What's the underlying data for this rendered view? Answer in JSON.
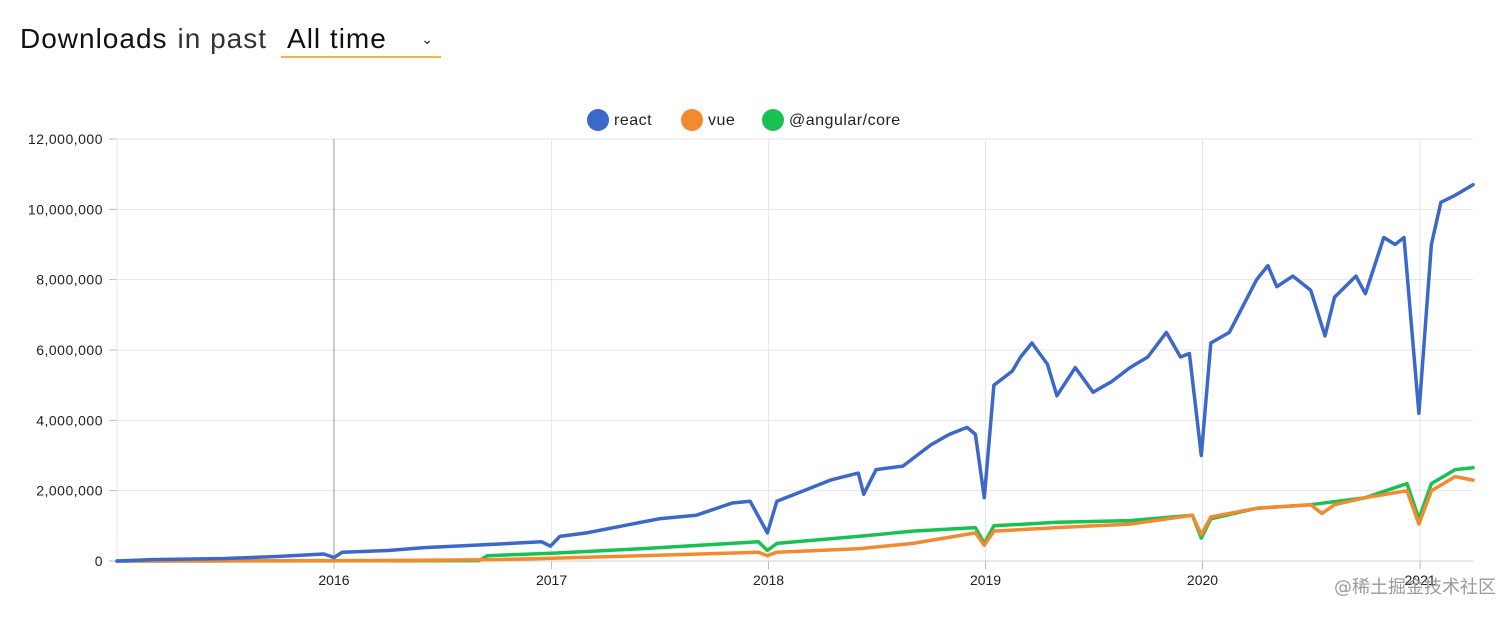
{
  "header": {
    "title": "Downloads",
    "subtitle": "in past",
    "range_selector": {
      "selected": "All time"
    }
  },
  "watermark": "@稀土掘金技术社区",
  "colors": {
    "react": "#3b68c9",
    "vue": "#f28a30",
    "angular": "#19c153",
    "grid": "#e6e6e6",
    "axis": "#999999"
  },
  "chart_data": {
    "type": "line",
    "title": "",
    "xlabel": "",
    "ylabel": "",
    "ylim": [
      0,
      12000000
    ],
    "xlim": [
      "2015-01-01",
      "2021-03-31"
    ],
    "grid": true,
    "legend": "top-center",
    "y_ticks": [
      "0",
      "2,000,000",
      "4,000,000",
      "6,000,000",
      "8,000,000",
      "10,000,000",
      "12,000,000"
    ],
    "x_ticks": [
      "2016",
      "2017",
      "2018",
      "2019",
      "2020",
      "2021"
    ],
    "series": [
      {
        "name": "react",
        "points": [
          [
            "2015-01-01",
            0
          ],
          [
            "2015-03-01",
            40000
          ],
          [
            "2015-07-01",
            70000
          ],
          [
            "2015-10-01",
            130000
          ],
          [
            "2015-12-15",
            200000
          ],
          [
            "2016-01-01",
            100000
          ],
          [
            "2016-01-15",
            250000
          ],
          [
            "2016-04-01",
            300000
          ],
          [
            "2016-06-01",
            380000
          ],
          [
            "2016-08-01",
            430000
          ],
          [
            "2016-10-01",
            480000
          ],
          [
            "2016-12-15",
            550000
          ],
          [
            "2016-12-30",
            420000
          ],
          [
            "2017-01-15",
            700000
          ],
          [
            "2017-03-01",
            800000
          ],
          [
            "2017-05-01",
            1000000
          ],
          [
            "2017-07-01",
            1200000
          ],
          [
            "2017-09-01",
            1300000
          ],
          [
            "2017-11-01",
            1650000
          ],
          [
            "2017-12-01",
            1700000
          ],
          [
            "2017-12-30",
            800000
          ],
          [
            "2018-01-15",
            1700000
          ],
          [
            "2018-03-01",
            2000000
          ],
          [
            "2018-04-15",
            2300000
          ],
          [
            "2018-06-01",
            2500000
          ],
          [
            "2018-06-10",
            1900000
          ],
          [
            "2018-07-01",
            2600000
          ],
          [
            "2018-08-15",
            2700000
          ],
          [
            "2018-10-01",
            3300000
          ],
          [
            "2018-11-01",
            3600000
          ],
          [
            "2018-12-01",
            3800000
          ],
          [
            "2018-12-15",
            3600000
          ],
          [
            "2018-12-30",
            1800000
          ],
          [
            "2019-01-15",
            5000000
          ],
          [
            "2019-02-15",
            5400000
          ],
          [
            "2019-03-01",
            5800000
          ],
          [
            "2019-03-20",
            6200000
          ],
          [
            "2019-04-15",
            5600000
          ],
          [
            "2019-05-01",
            4700000
          ],
          [
            "2019-06-01",
            5500000
          ],
          [
            "2019-07-01",
            4800000
          ],
          [
            "2019-08-01",
            5100000
          ],
          [
            "2019-09-01",
            5500000
          ],
          [
            "2019-10-01",
            5800000
          ],
          [
            "2019-11-01",
            6500000
          ],
          [
            "2019-11-25",
            5800000
          ],
          [
            "2019-12-10",
            5900000
          ],
          [
            "2019-12-30",
            3000000
          ],
          [
            "2020-01-15",
            6200000
          ],
          [
            "2020-02-15",
            6500000
          ],
          [
            "2020-04-01",
            8000000
          ],
          [
            "2020-04-20",
            8400000
          ],
          [
            "2020-05-05",
            7800000
          ],
          [
            "2020-06-01",
            8100000
          ],
          [
            "2020-07-01",
            7700000
          ],
          [
            "2020-07-25",
            6400000
          ],
          [
            "2020-08-10",
            7500000
          ],
          [
            "2020-09-15",
            8100000
          ],
          [
            "2020-10-01",
            7600000
          ],
          [
            "2020-11-01",
            9200000
          ],
          [
            "2020-11-20",
            9000000
          ],
          [
            "2020-12-05",
            9200000
          ],
          [
            "2020-12-30",
            4200000
          ],
          [
            "2021-01-20",
            9000000
          ],
          [
            "2021-02-05",
            10200000
          ],
          [
            "2021-03-01",
            10400000
          ],
          [
            "2021-03-31",
            10700000
          ]
        ]
      },
      {
        "name": "vue",
        "points": [
          [
            "2015-01-01",
            0
          ],
          [
            "2016-01-01",
            10000
          ],
          [
            "2016-06-01",
            20000
          ],
          [
            "2016-10-01",
            40000
          ],
          [
            "2017-01-01",
            80000
          ],
          [
            "2017-06-01",
            150000
          ],
          [
            "2017-12-15",
            250000
          ],
          [
            "2017-12-30",
            150000
          ],
          [
            "2018-01-15",
            250000
          ],
          [
            "2018-06-01",
            350000
          ],
          [
            "2018-09-01",
            500000
          ],
          [
            "2018-12-15",
            800000
          ],
          [
            "2018-12-30",
            450000
          ],
          [
            "2019-01-15",
            850000
          ],
          [
            "2019-05-01",
            950000
          ],
          [
            "2019-09-01",
            1050000
          ],
          [
            "2019-12-15",
            1300000
          ],
          [
            "2019-12-30",
            750000
          ],
          [
            "2020-01-15",
            1250000
          ],
          [
            "2020-04-01",
            1500000
          ],
          [
            "2020-07-01",
            1600000
          ],
          [
            "2020-07-20",
            1350000
          ],
          [
            "2020-08-10",
            1600000
          ],
          [
            "2020-10-01",
            1800000
          ],
          [
            "2020-12-10",
            2000000
          ],
          [
            "2020-12-30",
            1050000
          ],
          [
            "2021-01-20",
            2000000
          ],
          [
            "2021-03-01",
            2400000
          ],
          [
            "2021-03-31",
            2300000
          ]
        ]
      },
      {
        "name": "@angular/core",
        "points": [
          [
            "2015-01-01",
            0
          ],
          [
            "2016-09-01",
            10000
          ],
          [
            "2016-09-15",
            150000
          ],
          [
            "2017-01-01",
            220000
          ],
          [
            "2017-06-01",
            350000
          ],
          [
            "2017-12-15",
            550000
          ],
          [
            "2017-12-30",
            300000
          ],
          [
            "2018-01-15",
            500000
          ],
          [
            "2018-06-01",
            700000
          ],
          [
            "2018-09-01",
            850000
          ],
          [
            "2018-12-15",
            950000
          ],
          [
            "2018-12-30",
            500000
          ],
          [
            "2019-01-15",
            1000000
          ],
          [
            "2019-05-01",
            1100000
          ],
          [
            "2019-09-01",
            1150000
          ],
          [
            "2019-12-15",
            1300000
          ],
          [
            "2019-12-30",
            650000
          ],
          [
            "2020-01-15",
            1200000
          ],
          [
            "2020-04-01",
            1500000
          ],
          [
            "2020-07-01",
            1600000
          ],
          [
            "2020-10-01",
            1800000
          ],
          [
            "2020-12-10",
            2200000
          ],
          [
            "2020-12-30",
            1200000
          ],
          [
            "2021-01-20",
            2200000
          ],
          [
            "2021-03-01",
            2600000
          ],
          [
            "2021-03-31",
            2650000
          ]
        ]
      }
    ]
  }
}
